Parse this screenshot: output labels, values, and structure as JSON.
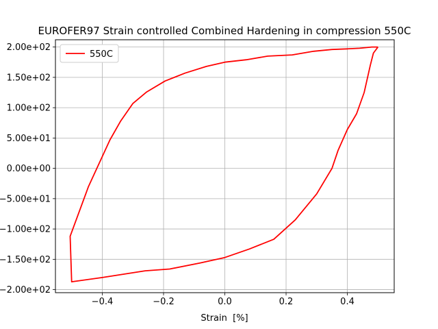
{
  "chart_data": {
    "type": "line",
    "title": "EUROFER97 Strain controlled Combined Hardening in compression 550C",
    "xlabel": "Strain  [%]",
    "ylabel": "",
    "xlim": [
      -0.553,
      0.553
    ],
    "ylim": [
      -205,
      212
    ],
    "grid": true,
    "legend_position": "top-left",
    "x_ticks": [
      {
        "value": -0.4,
        "label": "−0.4"
      },
      {
        "value": -0.2,
        "label": "−0.2"
      },
      {
        "value": 0.0,
        "label": "0.0"
      },
      {
        "value": 0.2,
        "label": "0.2"
      },
      {
        "value": 0.4,
        "label": "0.4"
      }
    ],
    "y_ticks": [
      {
        "value": 200,
        "label": "2.00e+02"
      },
      {
        "value": 150,
        "label": "1.50e+02"
      },
      {
        "value": 100,
        "label": "1.00e+02"
      },
      {
        "value": 50,
        "label": "5.00e+01"
      },
      {
        "value": 0,
        "label": "0.00e+00"
      },
      {
        "value": -50,
        "label": "−5.00e+01"
      },
      {
        "value": -100,
        "label": "−1.00e+02"
      },
      {
        "value": -150,
        "label": "−1.50e+02"
      },
      {
        "value": -200,
        "label": "−2.00e+02"
      }
    ],
    "series": [
      {
        "name": "550C",
        "color": "#ff0000",
        "x": [
          0.5,
          0.485,
          0.475,
          0.455,
          0.43,
          0.4,
          0.37,
          0.35,
          0.3,
          0.23,
          0.16,
          0.08,
          0.0,
          -0.08,
          -0.18,
          -0.26,
          -0.4,
          -0.5,
          -0.505,
          -0.445,
          -0.375,
          -0.34,
          -0.3,
          -0.255,
          -0.195,
          -0.13,
          -0.06,
          0.0,
          0.07,
          0.14,
          0.22,
          0.29,
          0.35,
          0.4,
          0.44,
          0.48,
          0.5
        ],
        "y": [
          200,
          190,
          170,
          125,
          90,
          64,
          30,
          0,
          -42,
          -85,
          -117,
          -133,
          -147,
          -156,
          -166,
          -169,
          -180,
          -187,
          -112,
          -30,
          47,
          78,
          107,
          126,
          144,
          157,
          168,
          175,
          179,
          185,
          187,
          193,
          196,
          197,
          198,
          200,
          200
        ]
      }
    ]
  }
}
